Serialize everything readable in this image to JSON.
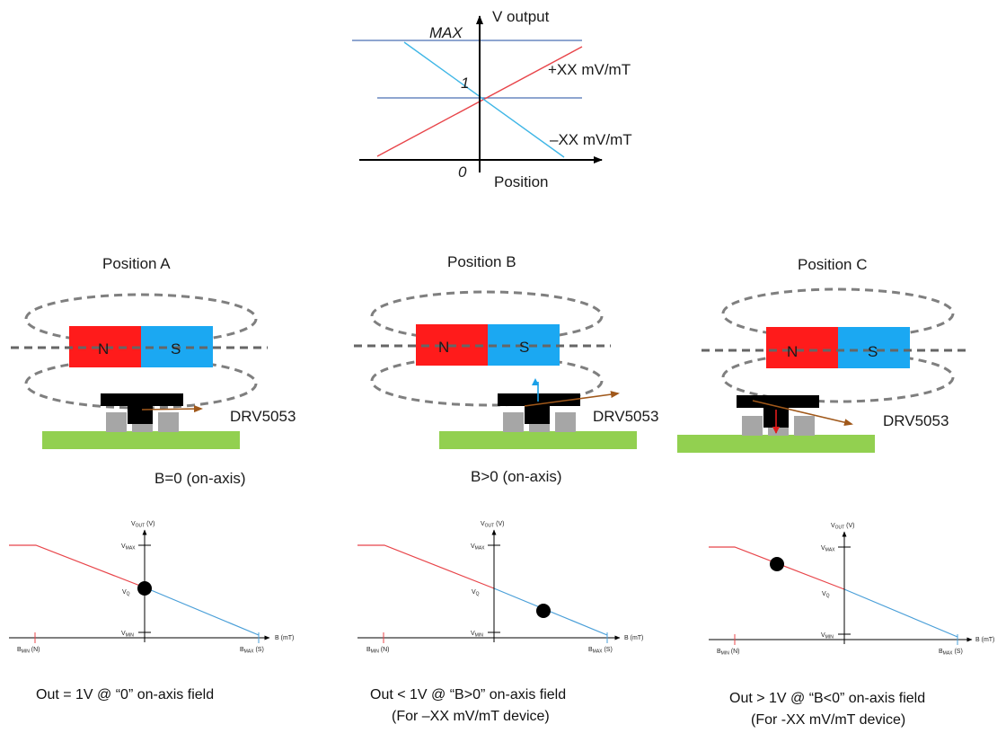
{
  "top_graph": {
    "y_axis_label": "V output",
    "x_axis_label": "Position",
    "max_label": "MAX",
    "one_label": "1",
    "zero_label": "0",
    "positive_slope_label": "+XX mV/mT",
    "negative_slope_label": "–XX mV/mT",
    "colors": {
      "positive": "#e8454a",
      "negative": "#3fb6e6",
      "reference": "#4a6fb3"
    }
  },
  "magnet": {
    "north_label": "N",
    "south_label": "S",
    "north_color": "#ff1b1b",
    "south_color": "#1ba8f2"
  },
  "positions": [
    {
      "title": "Position A",
      "device_label": "DRV5053",
      "field_label": "B=0 (on-axis)",
      "caption_lines": [
        "Out = 1V @ “0” on-axis field"
      ],
      "operating_point": {
        "b": 0,
        "v": "VQ"
      }
    },
    {
      "title": "Position B",
      "device_label": "DRV5053",
      "field_label": "B>0 (on-axis)",
      "caption_lines": [
        "Out < 1V @ “B>0” on-axis field",
        "(For –XX mV/mT device)"
      ],
      "operating_point": {
        "b": "positive",
        "v": "below VQ"
      }
    },
    {
      "title": "Position C",
      "device_label": "DRV5053",
      "field_label": "",
      "caption_lines": [
        "Out > 1V @ “B<0” on-axis field",
        "(For -XX mV/mT device)"
      ],
      "operating_point": {
        "b": "negative",
        "v": "above VQ"
      }
    }
  ],
  "transfer_graph": {
    "y_label_main": "V",
    "y_label_sub": "OUT",
    "y_label_unit": " (V)",
    "x_label": "B (mT)",
    "vmax_main": "V",
    "vmax_sub": "MAX",
    "vq_main": "V",
    "vq_sub": "Q",
    "vmin_main": "V",
    "vmin_sub": "MIN",
    "bmin_main": "B",
    "bmin_sub": "MIN",
    "bmin_suffix": " (N)",
    "bmax_main": "B",
    "bmax_sub": "MAX",
    "bmax_suffix": " (S)",
    "colors": {
      "north_side": "#e8454a",
      "south_side": "#4a9fd8"
    }
  }
}
